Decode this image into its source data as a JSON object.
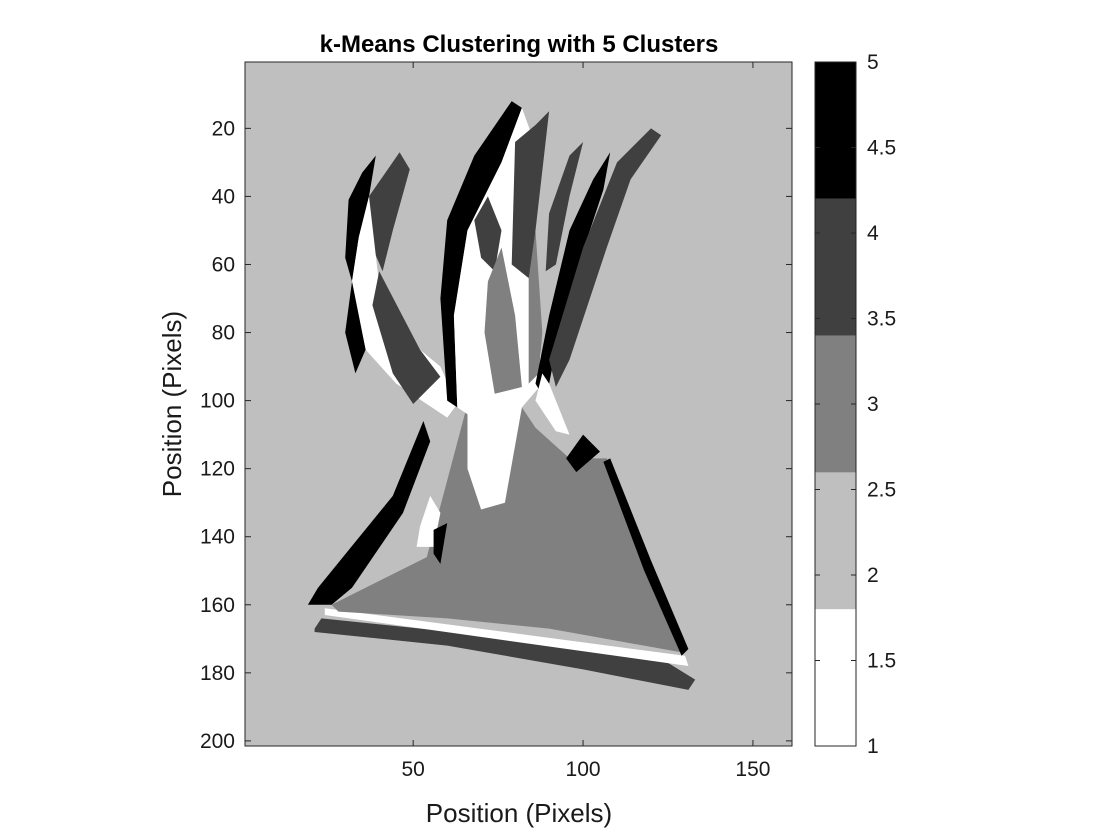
{
  "chart_data": {
    "type": "heatmap",
    "title": "k-Means Clustering with 5 Clusters",
    "xlabel": "Position (Pixels)",
    "ylabel": "Position (Pixels)",
    "xlim": [
      0.5,
      161.5
    ],
    "ylim": [
      0.5,
      201.5
    ],
    "y_reversed": true,
    "xticks": [
      50,
      100,
      150
    ],
    "yticks": [
      20,
      40,
      60,
      80,
      100,
      120,
      140,
      160,
      180,
      200
    ],
    "colorbar": {
      "range": [
        1,
        5
      ],
      "ticks": [
        1,
        1.5,
        2,
        2.5,
        3,
        3.5,
        4,
        4.5,
        5
      ],
      "colors": [
        "#ffffff",
        "#bfbfbf",
        "#808080",
        "#404040",
        "#000000"
      ]
    },
    "background_cluster": 2,
    "regions": [
      {
        "cluster": 4,
        "points": [
          [
            21,
            167
          ],
          [
            23,
            164
          ],
          [
            120,
            174
          ],
          [
            133,
            182
          ],
          [
            131,
            185
          ],
          [
            100,
            179
          ],
          [
            60,
            172
          ],
          [
            21,
            168
          ]
        ]
      },
      {
        "cluster": 1,
        "points": [
          [
            24,
            161
          ],
          [
            130,
            175
          ],
          [
            131,
            178
          ],
          [
            24,
            163
          ]
        ]
      },
      {
        "cluster": 3,
        "points": [
          [
            26,
            160
          ],
          [
            54,
            146
          ],
          [
            66,
            101
          ],
          [
            82,
            102
          ],
          [
            86,
            108
          ],
          [
            96,
            117
          ],
          [
            107,
            117
          ],
          [
            118,
            150
          ],
          [
            129,
            174
          ],
          [
            90,
            167
          ],
          [
            60,
            164
          ],
          [
            28,
            162
          ]
        ]
      },
      {
        "cluster": 5,
        "points": [
          [
            19,
            160
          ],
          [
            22,
            155
          ],
          [
            44,
            128
          ],
          [
            53,
            106
          ],
          [
            55,
            112
          ],
          [
            47,
            133
          ],
          [
            32,
            155
          ],
          [
            26,
            160
          ]
        ]
      },
      {
        "cluster": 5,
        "points": [
          [
            95,
            117
          ],
          [
            100,
            110
          ],
          [
            105,
            115
          ],
          [
            98,
            121
          ]
        ]
      },
      {
        "cluster": 5,
        "points": [
          [
            108,
            117
          ],
          [
            120,
            147
          ],
          [
            131,
            173
          ],
          [
            129,
            175
          ],
          [
            118,
            150
          ],
          [
            106,
            118
          ]
        ]
      },
      {
        "cluster": 1,
        "points": [
          [
            52,
            137
          ],
          [
            55,
            128
          ],
          [
            58,
            133
          ],
          [
            56,
            143
          ],
          [
            51,
            143
          ]
        ]
      },
      {
        "cluster": 5,
        "points": [
          [
            56,
            138
          ],
          [
            60,
            136
          ],
          [
            58,
            148
          ],
          [
            56,
            145
          ]
        ]
      },
      {
        "cluster": 4,
        "points": [
          [
            37,
            40
          ],
          [
            46,
            27
          ],
          [
            49,
            32
          ],
          [
            44,
            50
          ],
          [
            41,
            62
          ],
          [
            38,
            55
          ]
        ]
      },
      {
        "cluster": 5,
        "points": [
          [
            31,
            41
          ],
          [
            35,
            33
          ],
          [
            39,
            28
          ],
          [
            37,
            40
          ],
          [
            34,
            52
          ],
          [
            32,
            65
          ],
          [
            30,
            58
          ]
        ]
      },
      {
        "cluster": 1,
        "points": [
          [
            32,
            65
          ],
          [
            34,
            52
          ],
          [
            37,
            40
          ],
          [
            40,
            66
          ],
          [
            52,
            85
          ],
          [
            58,
            90
          ],
          [
            63,
            101
          ],
          [
            60,
            105
          ],
          [
            45,
            95
          ],
          [
            36,
            85
          ]
        ]
      },
      {
        "cluster": 5,
        "points": [
          [
            30,
            80
          ],
          [
            32,
            65
          ],
          [
            36,
            85
          ],
          [
            33,
            92
          ]
        ]
      },
      {
        "cluster": 4,
        "points": [
          [
            40,
            62
          ],
          [
            52,
            85
          ],
          [
            58,
            93
          ],
          [
            50,
            101
          ],
          [
            44,
            92
          ],
          [
            38,
            72
          ]
        ]
      },
      {
        "cluster": 5,
        "points": [
          [
            60,
            47
          ],
          [
            68,
            28
          ],
          [
            79,
            12
          ],
          [
            82,
            14
          ],
          [
            76,
            30
          ],
          [
            66,
            50
          ],
          [
            62,
            75
          ],
          [
            63,
            102
          ],
          [
            60,
            100
          ],
          [
            58,
            70
          ]
        ]
      },
      {
        "cluster": 1,
        "points": [
          [
            63,
            102
          ],
          [
            62,
            75
          ],
          [
            66,
            50
          ],
          [
            76,
            30
          ],
          [
            82,
            14
          ],
          [
            86,
            25
          ],
          [
            86,
            55
          ],
          [
            88,
            95
          ],
          [
            82,
            102
          ],
          [
            77,
            130
          ],
          [
            70,
            132
          ],
          [
            66,
            120
          ],
          [
            66,
            104
          ]
        ]
      },
      {
        "cluster": 4,
        "points": [
          [
            68,
            47
          ],
          [
            72,
            40
          ],
          [
            76,
            50
          ],
          [
            74,
            62
          ],
          [
            70,
            58
          ]
        ]
      },
      {
        "cluster": 3,
        "points": [
          [
            72,
            65
          ],
          [
            76,
            55
          ],
          [
            80,
            75
          ],
          [
            82,
            96
          ],
          [
            74,
            98
          ],
          [
            71,
            80
          ]
        ]
      },
      {
        "cluster": 3,
        "points": [
          [
            84,
            60
          ],
          [
            86,
            50
          ],
          [
            88,
            80
          ],
          [
            87,
            92
          ],
          [
            84,
            95
          ]
        ]
      },
      {
        "cluster": 4,
        "points": [
          [
            79,
            60
          ],
          [
            80,
            24
          ],
          [
            86,
            19
          ],
          [
            90,
            15
          ],
          [
            86,
            50
          ],
          [
            84,
            64
          ]
        ]
      },
      {
        "cluster": 4,
        "points": [
          [
            90,
            45
          ],
          [
            96,
            28
          ],
          [
            100,
            24
          ],
          [
            96,
            40
          ],
          [
            92,
            60
          ],
          [
            89,
            62
          ]
        ]
      },
      {
        "cluster": 5,
        "points": [
          [
            86,
            95
          ],
          [
            90,
            75
          ],
          [
            96,
            50
          ],
          [
            103,
            35
          ],
          [
            108,
            27
          ],
          [
            106,
            38
          ],
          [
            98,
            62
          ],
          [
            92,
            85
          ],
          [
            89,
            100
          ]
        ]
      },
      {
        "cluster": 4,
        "points": [
          [
            90,
            88
          ],
          [
            100,
            55
          ],
          [
            110,
            30
          ],
          [
            120,
            20
          ],
          [
            123,
            22
          ],
          [
            114,
            35
          ],
          [
            107,
            55
          ],
          [
            96,
            88
          ],
          [
            92,
            96
          ]
        ]
      },
      {
        "cluster": 1,
        "points": [
          [
            86,
            100
          ],
          [
            88,
            92
          ],
          [
            90,
            95
          ],
          [
            92,
            100
          ],
          [
            96,
            110
          ],
          [
            92,
            109
          ]
        ]
      }
    ]
  }
}
